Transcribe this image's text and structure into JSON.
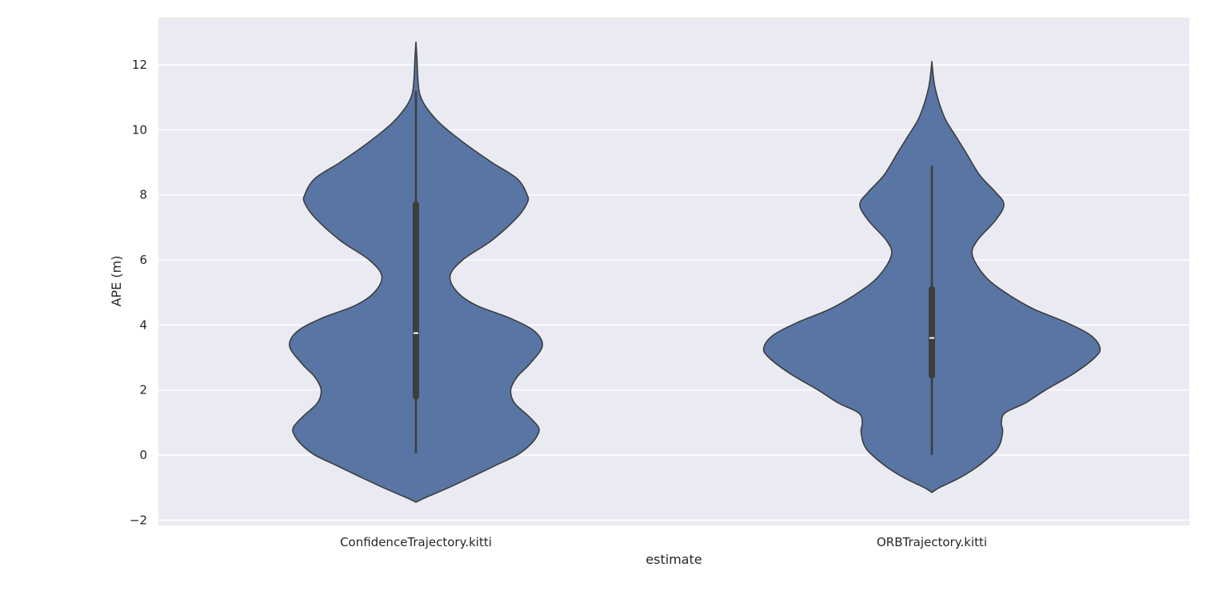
{
  "chart_data": {
    "type": "violin",
    "title": "",
    "xlabel": "estimate",
    "ylabel": "APE (m)",
    "ylim": [
      -2.2,
      13.4
    ],
    "yticks": [
      -2,
      0,
      2,
      4,
      6,
      8,
      10,
      12
    ],
    "ytick_labels": [
      "−2",
      "0",
      "2",
      "4",
      "6",
      "8",
      "10",
      "12"
    ],
    "grid": true,
    "colors": {
      "background": "#eaeaf2",
      "violin_fill": "#5875a4",
      "violin_edge": "#3d3d3d",
      "box": "#3d3d3d",
      "median": "#ffffff",
      "grid": "#ffffff"
    },
    "categories": [
      "ConfidenceTrajectory.kitti",
      "ORBTrajectory.kitti"
    ],
    "violins": [
      {
        "category": "ConfidenceTrajectory.kitti",
        "min": 0.05,
        "q1": 1.8,
        "median": 3.75,
        "q3": 7.7,
        "max": 11.2,
        "kde_range": [
          -1.45,
          12.7
        ],
        "density": [
          [
            -1.45,
            0.0
          ],
          [
            -1.3,
            0.08
          ],
          [
            -1.0,
            0.26
          ],
          [
            -0.6,
            0.48
          ],
          [
            -0.3,
            0.64
          ],
          [
            0.0,
            0.8
          ],
          [
            0.3,
            0.9
          ],
          [
            0.6,
            0.96
          ],
          [
            0.85,
            0.97
          ],
          [
            1.2,
            0.89
          ],
          [
            1.6,
            0.78
          ],
          [
            2.0,
            0.75
          ],
          [
            2.4,
            0.8
          ],
          [
            2.8,
            0.9
          ],
          [
            3.35,
            1.0
          ],
          [
            3.8,
            0.94
          ],
          [
            4.2,
            0.75
          ],
          [
            4.6,
            0.48
          ],
          [
            5.0,
            0.33
          ],
          [
            5.5,
            0.27
          ],
          [
            6.0,
            0.37
          ],
          [
            6.6,
            0.6
          ],
          [
            7.3,
            0.8
          ],
          [
            7.75,
            0.88
          ],
          [
            8.0,
            0.88
          ],
          [
            8.5,
            0.8
          ],
          [
            9.0,
            0.6
          ],
          [
            9.6,
            0.38
          ],
          [
            10.2,
            0.19
          ],
          [
            10.7,
            0.08
          ],
          [
            11.1,
            0.03
          ],
          [
            11.6,
            0.015
          ],
          [
            12.2,
            0.008
          ],
          [
            12.7,
            0.0
          ]
        ]
      },
      {
        "category": "ORBTrajectory.kitti",
        "min": 0.0,
        "q1": 2.45,
        "median": 3.6,
        "q3": 5.1,
        "max": 8.9,
        "kde_range": [
          -1.15,
          12.1
        ],
        "density": [
          [
            -1.15,
            0.0
          ],
          [
            -1.0,
            0.06
          ],
          [
            -0.7,
            0.22
          ],
          [
            -0.3,
            0.38
          ],
          [
            0.2,
            0.52
          ],
          [
            0.7,
            0.56
          ],
          [
            1.0,
            0.55
          ],
          [
            1.3,
            0.58
          ],
          [
            1.6,
            0.74
          ],
          [
            2.0,
            0.9
          ],
          [
            2.5,
            1.12
          ],
          [
            3.0,
            1.29
          ],
          [
            3.3,
            1.33
          ],
          [
            3.7,
            1.25
          ],
          [
            4.1,
            1.05
          ],
          [
            4.5,
            0.8
          ],
          [
            5.0,
            0.58
          ],
          [
            5.5,
            0.42
          ],
          [
            6.15,
            0.32
          ],
          [
            6.6,
            0.36
          ],
          [
            7.2,
            0.5
          ],
          [
            7.7,
            0.57
          ],
          [
            8.1,
            0.5
          ],
          [
            8.6,
            0.38
          ],
          [
            9.3,
            0.27
          ],
          [
            9.8,
            0.19
          ],
          [
            10.3,
            0.11
          ],
          [
            10.8,
            0.06
          ],
          [
            11.3,
            0.025
          ],
          [
            11.7,
            0.01
          ],
          [
            12.1,
            0.0
          ]
        ]
      }
    ]
  }
}
